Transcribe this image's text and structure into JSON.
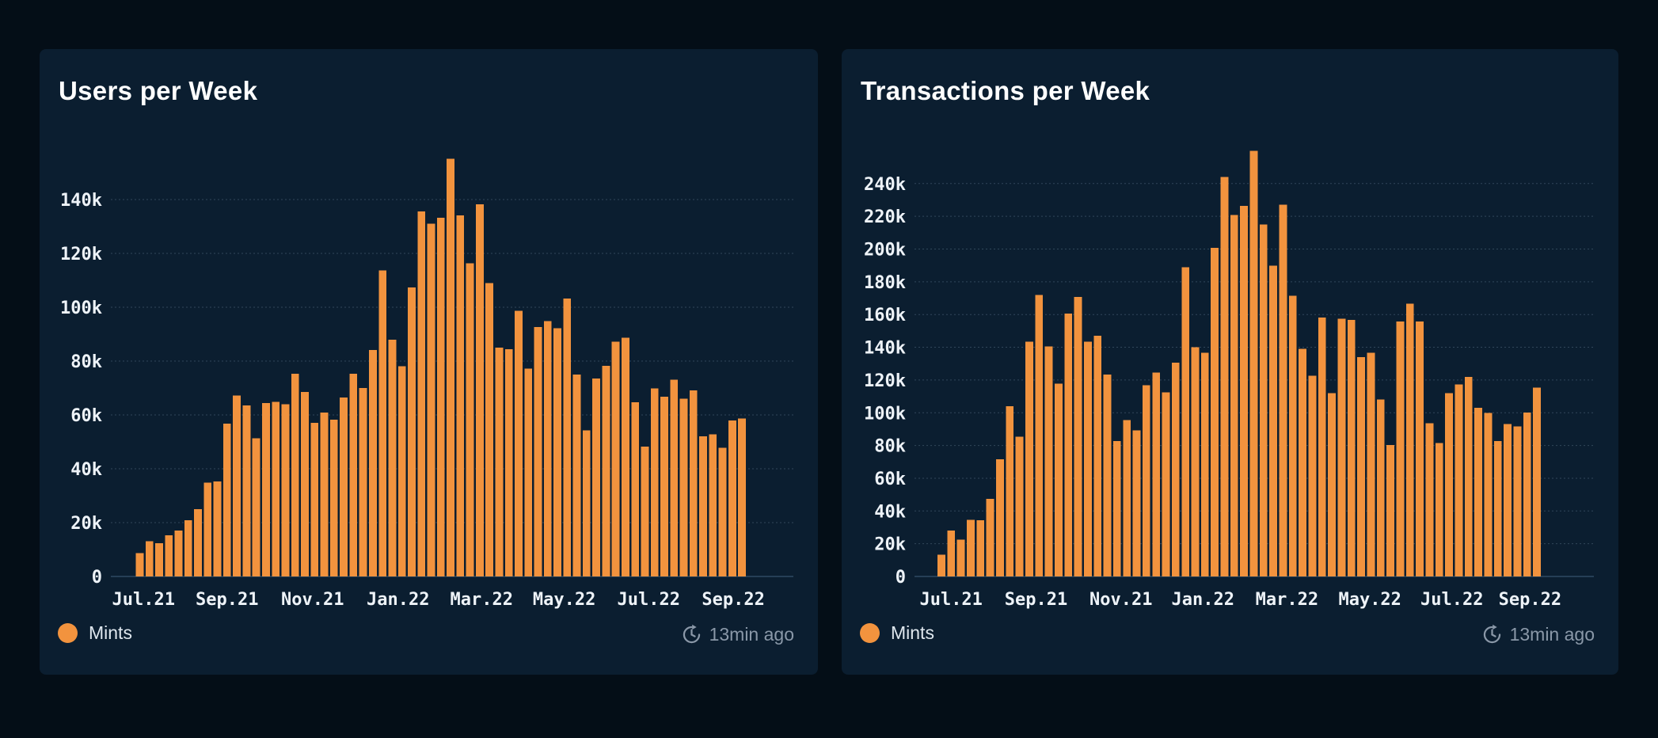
{
  "colors": {
    "page_background": "#040e17",
    "card_background": "#0b1e30",
    "accent_orange": "#f2933e",
    "grid_line": "#7f9ab0",
    "axis_line": "#2e4a63",
    "axis_text": "#eef3f8",
    "title_text": "#ffffff",
    "muted_text": "#8a98a8"
  },
  "cards": [
    {
      "title": "Users per Week",
      "legend_label": "Mints",
      "updated": "13min ago"
    },
    {
      "title": "Transactions per Week",
      "legend_label": "Mints",
      "updated": "13min ago"
    }
  ],
  "chart_data": [
    {
      "type": "bar",
      "title": "Users per Week",
      "x_description": "weekly buckets from Jul 2021 to Sep 2022",
      "x_tick_labels": [
        "Jul.21",
        "Sep.21",
        "Nov.21",
        "Jan.22",
        "Mar.22",
        "May.22",
        "Jul.22",
        "Sep.22"
      ],
      "x_tick_bar_index": [
        0.4,
        9.0,
        17.8,
        26.6,
        35.2,
        43.7,
        52.4,
        61.1
      ],
      "y_ticks": [
        "0",
        "20k",
        "40k",
        "60k",
        "80k",
        "100k",
        "120k",
        "140k"
      ],
      "y_tick_step": 20000,
      "ylim": [
        0,
        157000
      ],
      "grid": true,
      "legend_position": "bottom-left",
      "series": [
        {
          "name": "Mints",
          "color": "#f2933e",
          "values": [
            8700,
            13100,
            12400,
            15300,
            17000,
            20900,
            25000,
            34800,
            35300,
            56700,
            67200,
            63600,
            51300,
            64400,
            64800,
            63900,
            75300,
            68600,
            57000,
            60900,
            58300,
            66400,
            75300,
            70000,
            84100,
            113700,
            88000,
            78100,
            107400,
            135600,
            131100,
            133300,
            155200,
            134100,
            116300,
            138300,
            108900,
            85000,
            84400,
            98700,
            77200,
            92700,
            94800,
            92200,
            103300,
            75000,
            54200,
            73600,
            78300,
            87200,
            88700,
            64700,
            48300,
            69800,
            66700,
            73100,
            66100,
            69100,
            52000,
            52800,
            47800,
            58000,
            58700
          ]
        }
      ]
    },
    {
      "type": "bar",
      "title": "Transactions per Week",
      "x_description": "weekly buckets from Jul 2021 to Sep 2022",
      "x_tick_labels": [
        "Jul.21",
        "Sep.21",
        "Nov.21",
        "Jan.22",
        "Mar.22",
        "May.22",
        "Jul.22",
        "Sep.22"
      ],
      "x_tick_bar_index": [
        1.0,
        9.7,
        18.4,
        26.8,
        35.4,
        43.9,
        52.3,
        60.3
      ],
      "y_ticks": [
        "0",
        "20k",
        "40k",
        "60k",
        "80k",
        "100k",
        "120k",
        "140k",
        "160k",
        "180k",
        "200k",
        "220k",
        "240k"
      ],
      "y_tick_step": 20000,
      "ylim": [
        0,
        262000
      ],
      "grid": true,
      "legend_position": "bottom-left",
      "series": [
        {
          "name": "Mints",
          "color": "#f2933e",
          "values": [
            13300,
            28100,
            22400,
            34700,
            34400,
            47400,
            71700,
            104000,
            85400,
            143500,
            172000,
            140400,
            117700,
            160600,
            170800,
            143500,
            147100,
            123400,
            82700,
            95500,
            89200,
            116900,
            124500,
            112500,
            130600,
            188800,
            140000,
            136700,
            200800,
            244100,
            220700,
            226400,
            260000,
            215100,
            189800,
            227000,
            171400,
            139100,
            122600,
            158100,
            112000,
            157500,
            156800,
            134000,
            136700,
            108200,
            80300,
            155700,
            166700,
            155700,
            93600,
            81600,
            112000,
            117300,
            122000,
            103100,
            99800,
            82800,
            93000,
            91700,
            100200,
            115400
          ]
        }
      ]
    }
  ]
}
